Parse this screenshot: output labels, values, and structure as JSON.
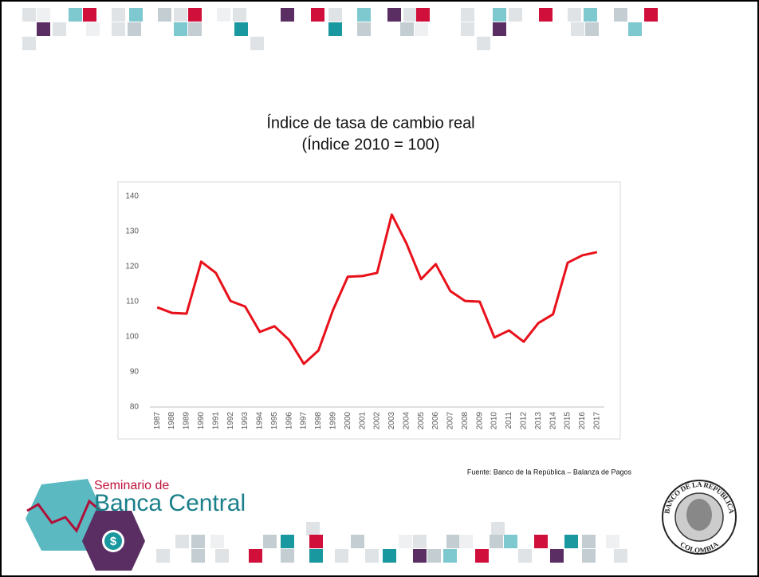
{
  "chart_data": {
    "type": "line",
    "title": "Índice de tasa de cambio real",
    "subtitle": "(Índice 2010 = 100)",
    "categories": [
      "1987",
      "1988",
      "1989",
      "1990",
      "1991",
      "1992",
      "1993",
      "1994",
      "1995",
      "1996",
      "1997",
      "1998",
      "1999",
      "2000",
      "2001",
      "2002",
      "2003",
      "2004",
      "2005",
      "2006",
      "2007",
      "2008",
      "2009",
      "2010",
      "2011",
      "2012",
      "2013",
      "2014",
      "2015",
      "2016",
      "2017"
    ],
    "values": [
      108.4,
      106.8,
      106.6,
      121.4,
      118.2,
      110.2,
      108.6,
      101.4,
      103,
      99.1,
      92.3,
      96.1,
      107.7,
      117.1,
      117.3,
      118.2,
      134.8,
      126.6,
      116.4,
      120.7,
      113,
      110.2,
      110,
      99.8,
      101.8,
      98.6,
      103.9,
      106.4,
      121.1,
      123.2,
      124.1
    ],
    "color": "#e8101a",
    "ylim": [
      80,
      140
    ],
    "yticks": [
      80,
      90,
      100,
      110,
      120,
      130,
      140
    ],
    "grid": false,
    "source": "Fuente: Banco de la República – Balanza de Pagos"
  },
  "logo": {
    "line1": "Seminario de",
    "line2": "Banca Central",
    "symbol": "$"
  },
  "seal": {
    "top": "BANCO DE LA REPÚBLICA",
    "bottom": "COLOMBIA"
  }
}
